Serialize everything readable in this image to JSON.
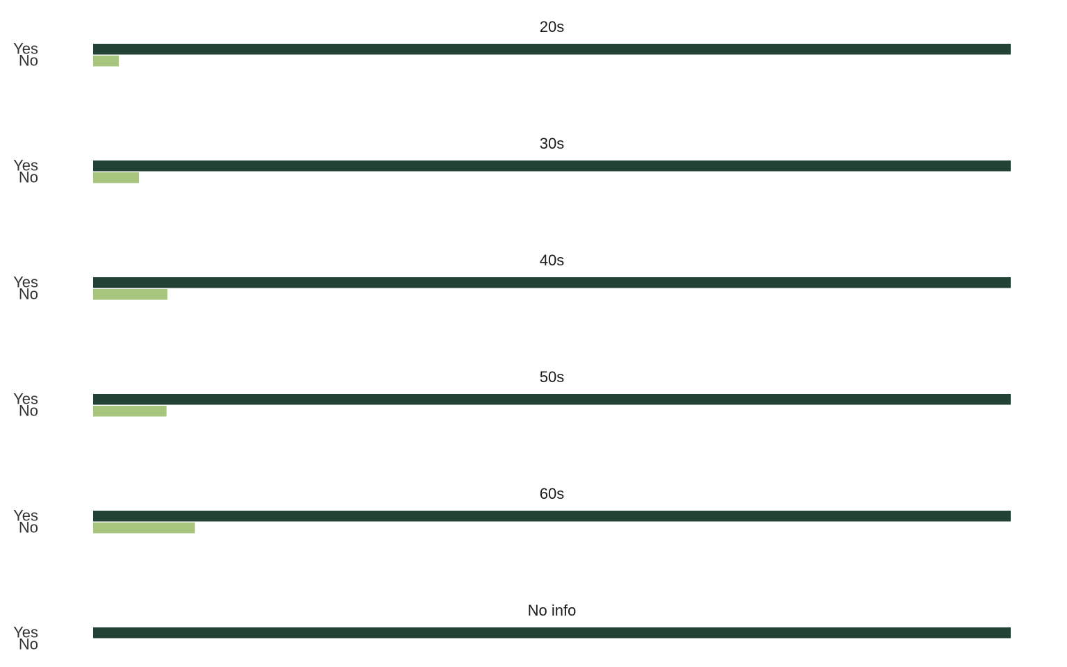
{
  "chart_data": {
    "type": "bar",
    "orientation": "horizontal",
    "categories": [
      "Yes",
      "No"
    ],
    "colors": {
      "Yes": "#214235",
      "No": "#a8c57e"
    },
    "grid": false,
    "xlim": [
      0,
      100
    ],
    "panels": [
      {
        "title": "20s",
        "values": [
          100,
          2.8
        ]
      },
      {
        "title": "30s",
        "values": [
          100,
          5.0
        ]
      },
      {
        "title": "40s",
        "values": [
          100,
          8.1
        ]
      },
      {
        "title": "50s",
        "values": [
          100,
          8.0
        ]
      },
      {
        "title": "60s",
        "values": [
          100,
          11.1
        ]
      },
      {
        "title": "No info",
        "values": [
          100,
          0
        ]
      }
    ]
  }
}
